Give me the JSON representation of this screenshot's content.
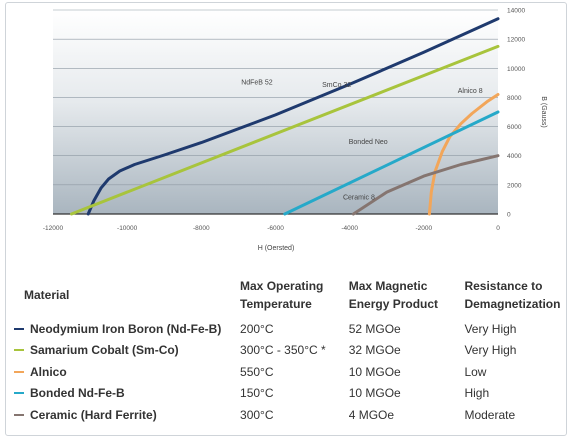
{
  "chart_data": {
    "type": "line",
    "xlabel": "H (Oersted)",
    "ylabel": "B (Gauss)",
    "xlim": [
      -12000,
      0
    ],
    "ylim": [
      0,
      14000
    ],
    "x_ticks": [
      "-12000",
      "-10000",
      "-8000",
      "-6000",
      "-4000",
      "-2000",
      "0"
    ],
    "y_ticks": [
      "0",
      "2000",
      "4000",
      "6000",
      "8000",
      "10000",
      "12000",
      "14000"
    ],
    "grid": true,
    "series": [
      {
        "name": "NdFeB 52",
        "color": "#1f3a6e",
        "x": [
          -11050,
          -10900,
          -10700,
          -10500,
          -10200,
          -9800,
          -9000,
          -8000,
          -6000,
          -4000,
          -2000,
          0
        ],
        "y": [
          0,
          900,
          1800,
          2400,
          2950,
          3400,
          4050,
          4900,
          6800,
          8900,
          11100,
          13400
        ]
      },
      {
        "name": "SmCo 32",
        "color": "#a8c43c",
        "x": [
          -11500,
          0
        ],
        "y": [
          0,
          11500
        ]
      },
      {
        "name": "Alnico 8",
        "color": "#f2a65a",
        "x": [
          -1850,
          -1800,
          -1700,
          -1500,
          -1300,
          -1000,
          -700,
          -300,
          0
        ],
        "y": [
          0,
          1500,
          2900,
          4300,
          5300,
          6200,
          6900,
          7700,
          8200
        ]
      },
      {
        "name": "Bonded Neo",
        "color": "#26a9c9",
        "x": [
          -5750,
          0
        ],
        "y": [
          0,
          7000
        ]
      },
      {
        "name": "Ceramic 8",
        "color": "#857570",
        "x": [
          -3900,
          -3000,
          -2000,
          -1000,
          0
        ],
        "y": [
          0,
          1500,
          2600,
          3400,
          4000
        ]
      }
    ],
    "annotations": [
      {
        "text": "NdFeB 52",
        "x": -6500,
        "y": 8900
      },
      {
        "text": "SmCo 32",
        "x": -4350,
        "y": 8700
      },
      {
        "text": "Alnico 8",
        "x": -750,
        "y": 8300
      },
      {
        "text": "Bonded Neo",
        "x": -3500,
        "y": 4800
      },
      {
        "text": "Ceramic 8",
        "x": -3750,
        "y": 1000
      }
    ]
  },
  "table": {
    "headers": [
      "Material",
      "Max Operating\nTemperature",
      "Max Magnetic\nEnergy Product",
      "Resistance to\nDemagnetization"
    ],
    "rows": [
      {
        "material": "Neodymium Iron Boron (Nd-Fe-B)",
        "temp": "200°C",
        "energy": "52 MGOe",
        "resistance": "Very High",
        "color": "#1f3a6e"
      },
      {
        "material": "Samarium Cobalt (Sm-Co)",
        "temp": "300°C - 350°C *",
        "energy": "32 MGOe",
        "resistance": "Very High",
        "color": "#a8c43c"
      },
      {
        "material": "Alnico",
        "temp": "550°C",
        "energy": "10 MGOe",
        "resistance": "Low",
        "color": "#f2a65a"
      },
      {
        "material": "Bonded Nd-Fe-B",
        "temp": "150°C",
        "energy": "10 MGOe",
        "resistance": "High",
        "color": "#26a9c9"
      },
      {
        "material": "Ceramic (Hard Ferrite)",
        "temp": "300°C",
        "energy": "4 MGOe",
        "resistance": "Moderate",
        "color": "#857570"
      }
    ]
  }
}
